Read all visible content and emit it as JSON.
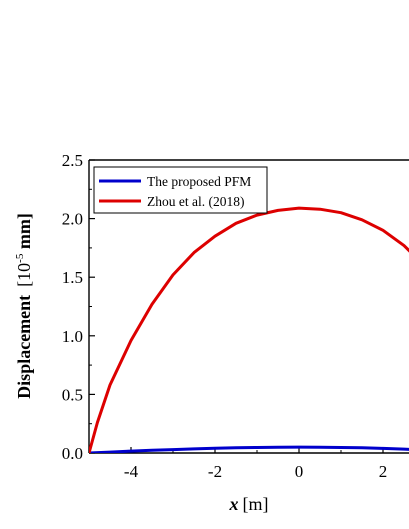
{
  "chart_data": {
    "type": "line",
    "title": "",
    "xlabel": "x [m]",
    "xlabel_var": "x",
    "xlabel_unit": "[m]",
    "ylabel": "Displacement [10^-5 mm]",
    "ylabel_main": "Displacement",
    "ylabel_unit_open": "[10",
    "ylabel_unit_exp": "-5",
    "ylabel_unit_close": " mm]",
    "xlim": [
      -5,
      2.7
    ],
    "ylim": [
      0,
      2.5
    ],
    "xticks": [
      -4,
      -2,
      0,
      2
    ],
    "xtick_labels": [
      "-4",
      "-2",
      "0",
      "2"
    ],
    "yticks": [
      0.0,
      0.5,
      1.0,
      1.5,
      2.0,
      2.5
    ],
    "ytick_labels": [
      "0.0",
      "0.5",
      "1.0",
      "1.5",
      "2.0",
      "2.5"
    ],
    "grid": false,
    "legend_position": "top-left",
    "series": [
      {
        "name": "The proposed PFM",
        "color": "#0000cc",
        "x": [
          -5.0,
          -4.5,
          -4.0,
          -3.5,
          -3.0,
          -2.5,
          -2.0,
          -1.5,
          -1.0,
          -0.5,
          0.0,
          0.5,
          1.0,
          1.5,
          2.0,
          2.5,
          2.7
        ],
        "y": [
          0.0,
          0.008,
          0.016,
          0.023,
          0.029,
          0.035,
          0.04,
          0.044,
          0.047,
          0.049,
          0.05,
          0.049,
          0.047,
          0.044,
          0.039,
          0.033,
          0.03
        ]
      },
      {
        "name": "Zhou et al. (2018)",
        "color": "#dd0000",
        "x": [
          -5.0,
          -4.8,
          -4.5,
          -4.0,
          -3.5,
          -3.0,
          -2.5,
          -2.0,
          -1.5,
          -1.0,
          -0.5,
          0.0,
          0.5,
          1.0,
          1.5,
          2.0,
          2.5,
          2.7
        ],
        "y": [
          0.0,
          0.26,
          0.58,
          0.96,
          1.27,
          1.52,
          1.71,
          1.85,
          1.96,
          2.03,
          2.07,
          2.09,
          2.08,
          2.05,
          1.99,
          1.9,
          1.77,
          1.7
        ]
      }
    ]
  }
}
